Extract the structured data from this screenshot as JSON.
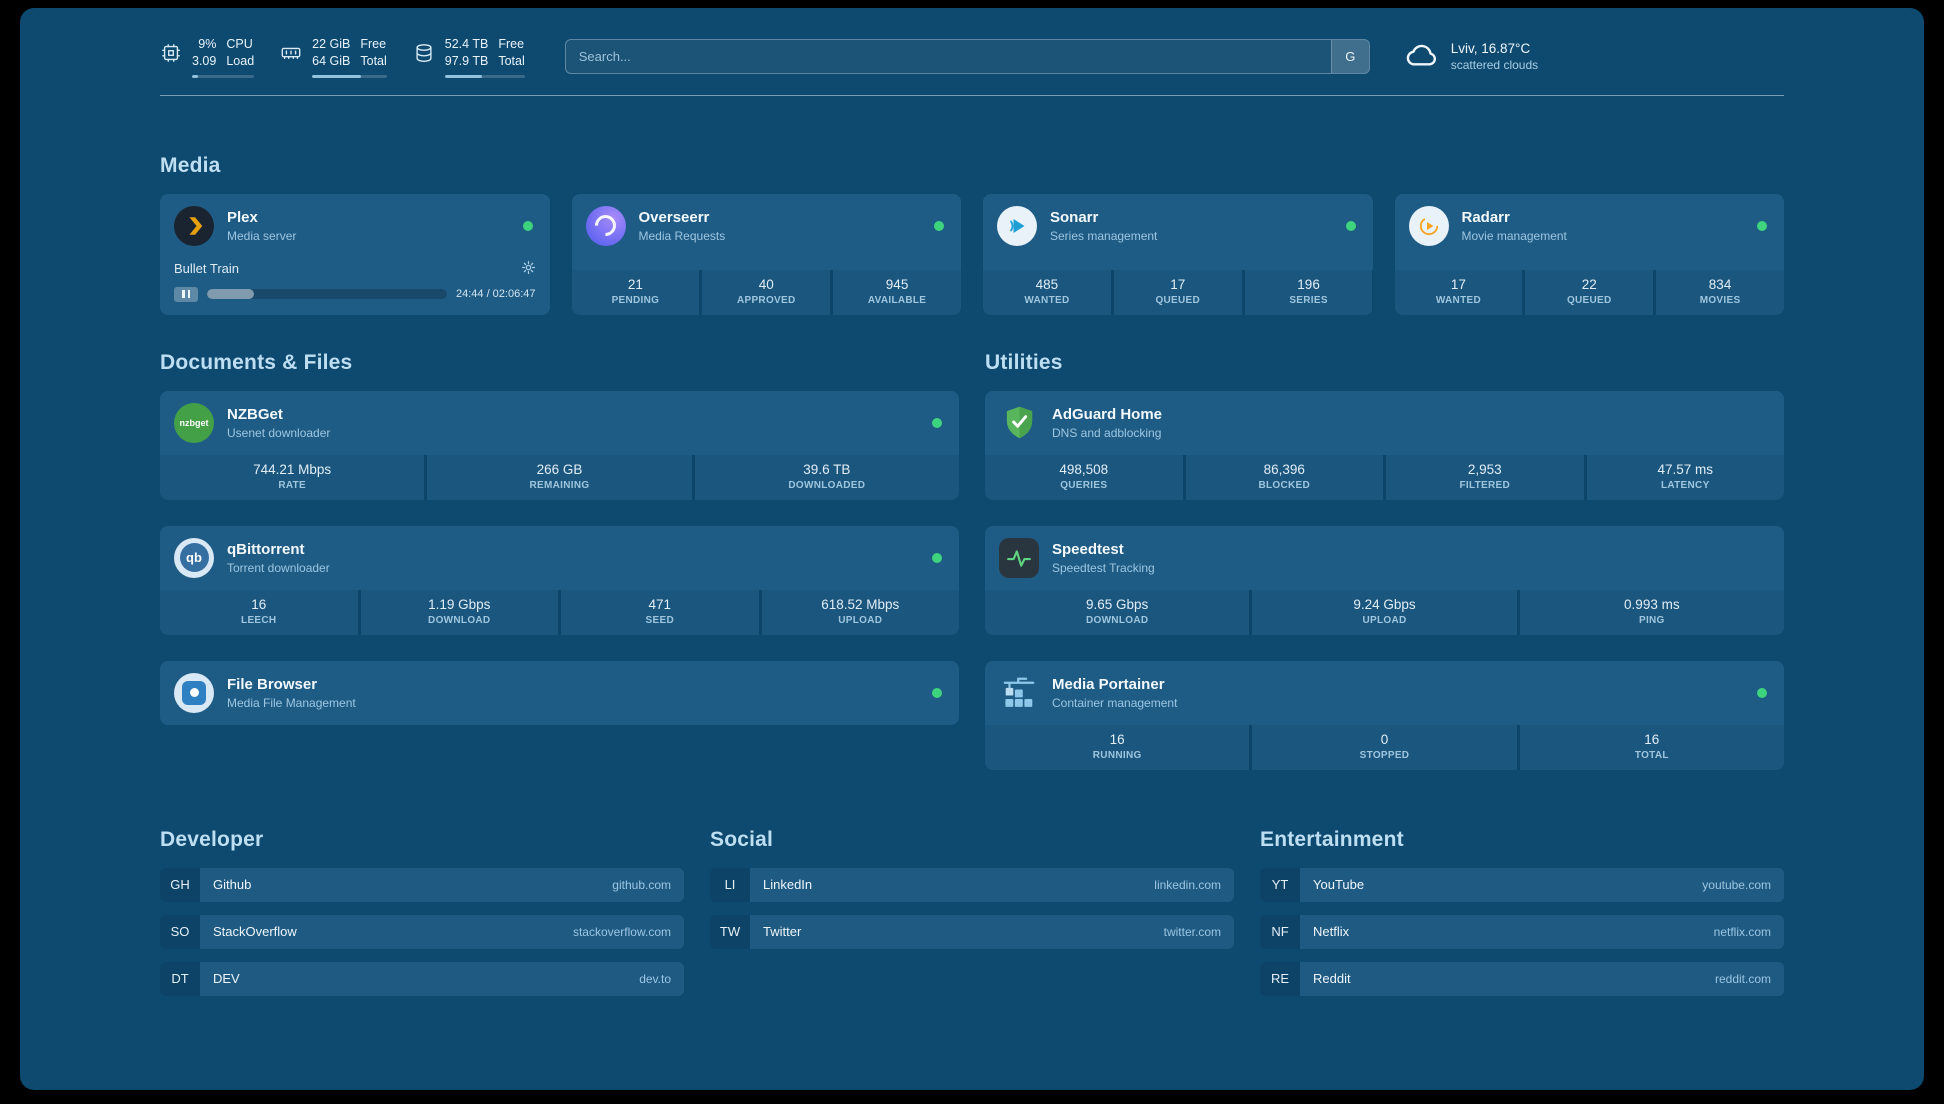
{
  "colors": {
    "page_background": "#0e4a70",
    "card_background": "#1f5c85",
    "status_online": "#3ed47d",
    "accent_light_blue": "#9dc6e0",
    "plex_brand": "#e5a00d",
    "adguard_brand": "#59b65c"
  },
  "topbar": {
    "cpu": {
      "value_top": "9%",
      "label_top": "CPU",
      "value_bottom": "3.09",
      "label_bottom": "Load",
      "progress_pct": 9
    },
    "memory": {
      "value_top": "22 GiB",
      "label_top": "Free",
      "value_bottom": "64 GiB",
      "label_bottom": "Total",
      "progress_pct": 66
    },
    "disk": {
      "value_top": "52.4 TB",
      "label_top": "Free",
      "value_bottom": "97.9 TB",
      "label_bottom": "Total",
      "progress_pct": 47
    },
    "search": {
      "placeholder": "Search...",
      "button_label": "G"
    },
    "weather": {
      "location": "Lviv, 16.87°C",
      "condition": "scattered clouds"
    }
  },
  "media": {
    "title": "Media",
    "plex": {
      "name": "Plex",
      "desc": "Media server",
      "now_playing": "Bullet Train",
      "elapsed": "24:44 / 02:06:47",
      "progress_pct": 19.5
    },
    "overseerr": {
      "name": "Overseerr",
      "desc": "Media Requests",
      "stats": [
        {
          "value": "21",
          "label": "PENDING"
        },
        {
          "value": "40",
          "label": "APPROVED"
        },
        {
          "value": "945",
          "label": "AVAILABLE"
        }
      ]
    },
    "sonarr": {
      "name": "Sonarr",
      "desc": "Series management",
      "stats": [
        {
          "value": "485",
          "label": "WANTED"
        },
        {
          "value": "17",
          "label": "QUEUED"
        },
        {
          "value": "196",
          "label": "SERIES"
        }
      ]
    },
    "radarr": {
      "name": "Radarr",
      "desc": "Movie management",
      "stats": [
        {
          "value": "17",
          "label": "WANTED"
        },
        {
          "value": "22",
          "label": "QUEUED"
        },
        {
          "value": "834",
          "label": "MOVIES"
        }
      ]
    }
  },
  "documents": {
    "title": "Documents & Files",
    "nzbget": {
      "name": "NZBGet",
      "desc": "Usenet downloader",
      "stats": [
        {
          "value": "744.21 Mbps",
          "label": "RATE"
        },
        {
          "value": "266 GB",
          "label": "REMAINING"
        },
        {
          "value": "39.6 TB",
          "label": "DOWNLOADED"
        }
      ]
    },
    "qbittorrent": {
      "name": "qBittorrent",
      "desc": "Torrent downloader",
      "stats": [
        {
          "value": "16",
          "label": "LEECH"
        },
        {
          "value": "1.19 Gbps",
          "label": "DOWNLOAD"
        },
        {
          "value": "471",
          "label": "SEED"
        },
        {
          "value": "618.52 Mbps",
          "label": "UPLOAD"
        }
      ]
    },
    "filebrowser": {
      "name": "File Browser",
      "desc": "Media File Management"
    }
  },
  "utilities": {
    "title": "Utilities",
    "adguard": {
      "name": "AdGuard Home",
      "desc": "DNS and adblocking",
      "stats": [
        {
          "value": "498,508",
          "label": "QUERIES"
        },
        {
          "value": "86,396",
          "label": "BLOCKED"
        },
        {
          "value": "2,953",
          "label": "FILTERED"
        },
        {
          "value": "47.57 ms",
          "label": "LATENCY"
        }
      ]
    },
    "speedtest": {
      "name": "Speedtest",
      "desc": "Speedtest Tracking",
      "stats": [
        {
          "value": "9.65 Gbps",
          "label": "DOWNLOAD"
        },
        {
          "value": "9.24 Gbps",
          "label": "UPLOAD"
        },
        {
          "value": "0.993 ms",
          "label": "PING"
        }
      ]
    },
    "portainer": {
      "name": "Media Portainer",
      "desc": "Container management",
      "stats": [
        {
          "value": "16",
          "label": "RUNNING"
        },
        {
          "value": "0",
          "label": "STOPPED"
        },
        {
          "value": "16",
          "label": "TOTAL"
        }
      ]
    }
  },
  "bookmarks": {
    "developer": {
      "title": "Developer",
      "items": [
        {
          "abbr": "GH",
          "name": "Github",
          "domain": "github.com"
        },
        {
          "abbr": "SO",
          "name": "StackOverflow",
          "domain": "stackoverflow.com"
        },
        {
          "abbr": "DT",
          "name": "DEV",
          "domain": "dev.to"
        }
      ]
    },
    "social": {
      "title": "Social",
      "items": [
        {
          "abbr": "LI",
          "name": "LinkedIn",
          "domain": "linkedin.com"
        },
        {
          "abbr": "TW",
          "name": "Twitter",
          "domain": "twitter.com"
        }
      ]
    },
    "entertainment": {
      "title": "Entertainment",
      "items": [
        {
          "abbr": "YT",
          "name": "YouTube",
          "domain": "youtube.com"
        },
        {
          "abbr": "NF",
          "name": "Netflix",
          "domain": "netflix.com"
        },
        {
          "abbr": "RE",
          "name": "Reddit",
          "domain": "reddit.com"
        }
      ]
    }
  },
  "icon_badges": {
    "nzbget": "nzbget",
    "qbittorrent": "qb"
  }
}
